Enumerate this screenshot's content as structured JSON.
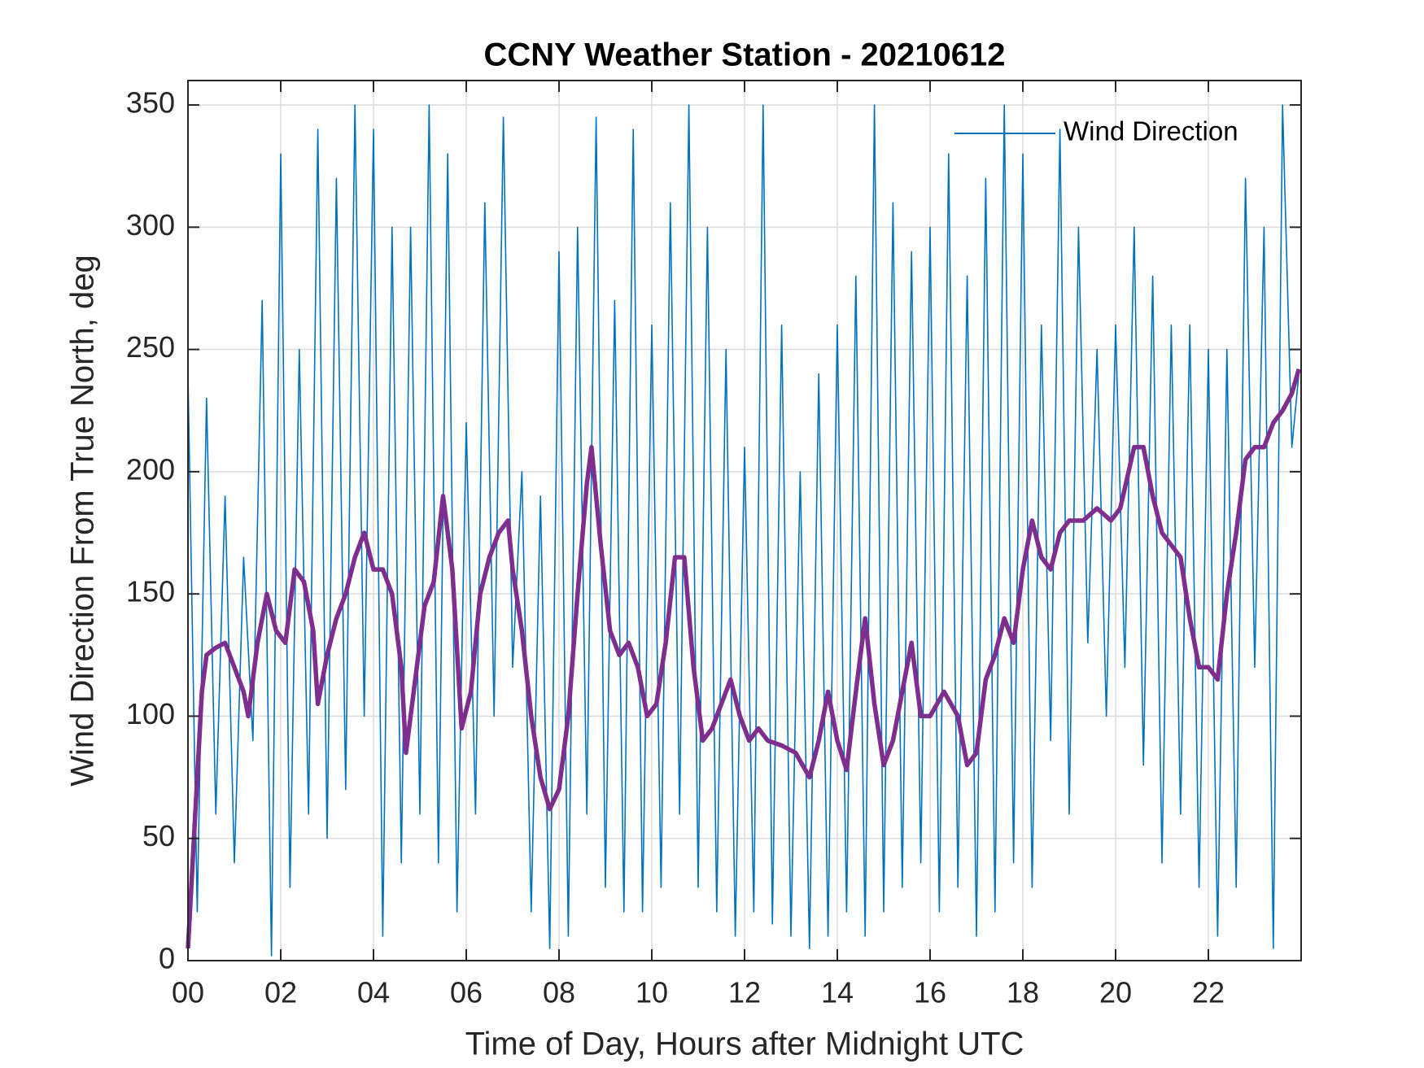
{
  "chart_data": {
    "type": "line",
    "title": "CCNY Weather Station - 20210612",
    "xlabel": "Time of Day, Hours after Midnight UTC",
    "ylabel": "Wind Direction From True North, deg",
    "xlim": [
      0,
      24
    ],
    "ylim": [
      0,
      360
    ],
    "xticks": [
      {
        "value": 0,
        "label": "00"
      },
      {
        "value": 2,
        "label": "02"
      },
      {
        "value": 4,
        "label": "04"
      },
      {
        "value": 6,
        "label": "06"
      },
      {
        "value": 8,
        "label": "08"
      },
      10,
      12,
      14,
      16,
      18,
      20,
      22
    ],
    "yticks": [
      0,
      50,
      100,
      150,
      200,
      250,
      300,
      350
    ],
    "grid": true,
    "legend": "upper right",
    "series": [
      {
        "name": "Wind Direction",
        "color": "#0072BD",
        "x": [
          0,
          0.2,
          0.4,
          0.6,
          0.8,
          1,
          1.2,
          1.4,
          1.6,
          1.8,
          2,
          2.2,
          2.4,
          2.6,
          2.8,
          3,
          3.2,
          3.4,
          3.6,
          3.8,
          4,
          4.2,
          4.4,
          4.6,
          4.8,
          5,
          5.2,
          5.4,
          5.6,
          5.8,
          6,
          6.2,
          6.4,
          6.6,
          6.8,
          7,
          7.2,
          7.4,
          7.6,
          7.8,
          8,
          8.2,
          8.4,
          8.6,
          8.8,
          9,
          9.2,
          9.4,
          9.6,
          9.8,
          10,
          10.2,
          10.4,
          10.6,
          10.8,
          11,
          11.2,
          11.4,
          11.6,
          11.8,
          12,
          12.2,
          12.4,
          12.6,
          12.8,
          13,
          13.2,
          13.4,
          13.6,
          13.8,
          14,
          14.2,
          14.4,
          14.6,
          14.8,
          15,
          15.2,
          15.4,
          15.6,
          15.8,
          16,
          16.2,
          16.4,
          16.6,
          16.8,
          17,
          17.2,
          17.4,
          17.6,
          17.8,
          18,
          18.2,
          18.4,
          18.6,
          18.8,
          19,
          19.2,
          19.4,
          19.6,
          19.8,
          20,
          20.2,
          20.4,
          20.6,
          20.8,
          21,
          21.2,
          21.4,
          21.6,
          21.8,
          22,
          22.2,
          22.4,
          22.6,
          22.8,
          23,
          23.2,
          23.4,
          23.6,
          23.8,
          23.95
        ],
        "values": [
          240,
          20,
          230,
          60,
          190,
          40,
          165,
          90,
          270,
          2,
          330,
          30,
          250,
          60,
          340,
          50,
          320,
          70,
          350,
          100,
          340,
          10,
          300,
          40,
          300,
          60,
          350,
          40,
          330,
          20,
          220,
          60,
          310,
          100,
          345,
          120,
          200,
          20,
          190,
          5,
          290,
          10,
          300,
          60,
          345,
          30,
          270,
          20,
          340,
          20,
          260,
          30,
          310,
          60,
          350,
          30,
          300,
          20,
          250,
          10,
          210,
          20,
          350,
          15,
          260,
          10,
          200,
          5,
          240,
          10,
          260,
          20,
          280,
          10,
          350,
          20,
          310,
          30,
          290,
          40,
          300,
          20,
          330,
          30,
          280,
          10,
          320,
          20,
          350,
          40,
          330,
          30,
          260,
          90,
          340,
          60,
          300,
          130,
          250,
          100,
          260,
          120,
          300,
          80,
          280,
          40,
          260,
          60,
          260,
          30,
          250,
          10,
          250,
          30,
          320,
          120,
          300,
          5,
          350,
          210,
          240
        ]
      },
      {
        "color": "#7E2F8E",
        "x": [
          0,
          0.1,
          0.2,
          0.3,
          0.4,
          0.6,
          0.8,
          1,
          1.2,
          1.3,
          1.5,
          1.7,
          1.9,
          2.1,
          2.3,
          2.5,
          2.7,
          2.8,
          3,
          3.2,
          3.4,
          3.6,
          3.8,
          4,
          4.2,
          4.4,
          4.6,
          4.7,
          4.9,
          5.1,
          5.3,
          5.5,
          5.7,
          5.9,
          6.1,
          6.3,
          6.5,
          6.7,
          6.9,
          7,
          7.2,
          7.4,
          7.6,
          7.8,
          8,
          8.2,
          8.4,
          8.6,
          8.7,
          8.9,
          9.1,
          9.3,
          9.5,
          9.7,
          9.9,
          10.1,
          10.3,
          10.5,
          10.7,
          10.9,
          11.1,
          11.3,
          11.5,
          11.7,
          11.9,
          12.1,
          12.3,
          12.5,
          12.8,
          13.1,
          13.4,
          13.6,
          13.8,
          14,
          14.2,
          14.4,
          14.6,
          14.8,
          15,
          15.2,
          15.4,
          15.6,
          15.8,
          16,
          16.3,
          16.6,
          16.8,
          17,
          17.2,
          17.4,
          17.6,
          17.8,
          18,
          18.2,
          18.4,
          18.6,
          18.8,
          19,
          19.3,
          19.6,
          19.9,
          20.1,
          20.4,
          20.6,
          20.8,
          21,
          21.2,
          21.4,
          21.6,
          21.8,
          22,
          22.2,
          22.4,
          22.6,
          22.8,
          23,
          23.2,
          23.4,
          23.6,
          23.8,
          23.95
        ],
        "values": [
          5,
          40,
          75,
          110,
          125,
          128,
          130,
          120,
          110,
          100,
          130,
          150,
          135,
          130,
          160,
          155,
          135,
          105,
          125,
          140,
          150,
          165,
          175,
          160,
          160,
          150,
          120,
          85,
          115,
          145,
          155,
          190,
          160,
          95,
          110,
          150,
          165,
          175,
          180,
          160,
          135,
          100,
          75,
          62,
          70,
          100,
          150,
          195,
          210,
          170,
          135,
          125,
          130,
          120,
          100,
          105,
          130,
          165,
          165,
          120,
          90,
          95,
          105,
          115,
          100,
          90,
          95,
          90,
          88,
          85,
          75,
          90,
          110,
          90,
          78,
          110,
          140,
          105,
          80,
          90,
          110,
          130,
          100,
          100,
          110,
          100,
          80,
          85,
          115,
          125,
          140,
          130,
          160,
          180,
          165,
          160,
          175,
          180,
          180,
          185,
          180,
          185,
          210,
          210,
          190,
          175,
          170,
          165,
          140,
          120,
          120,
          115,
          150,
          175,
          205,
          210,
          210,
          220,
          225,
          232,
          242
        ]
      }
    ]
  }
}
